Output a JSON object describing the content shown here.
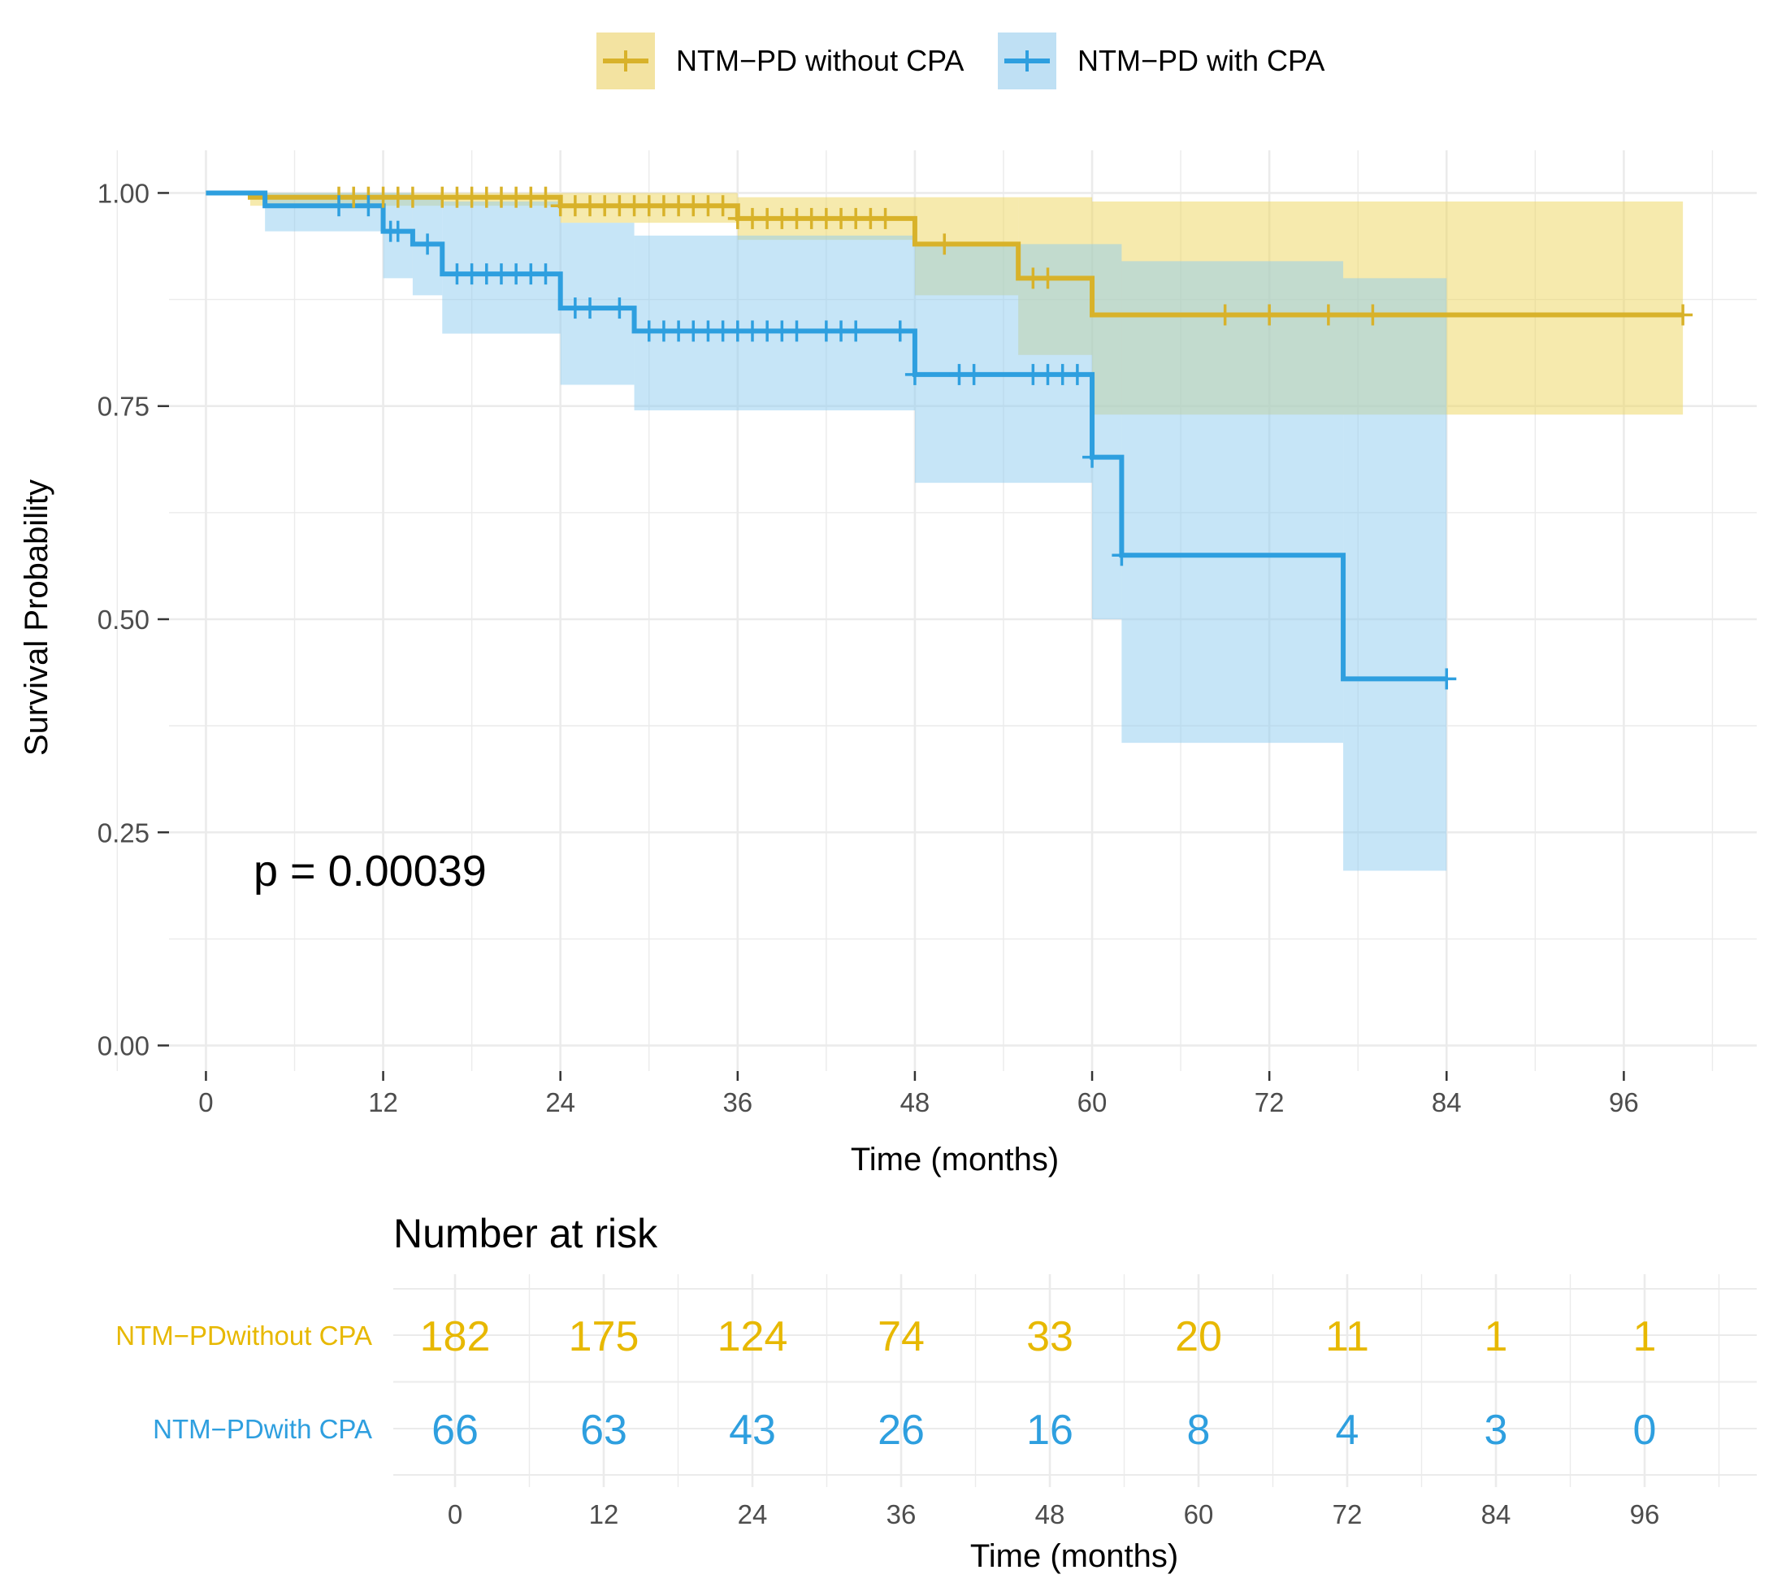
{
  "chart_data": {
    "type": "kaplan-meier",
    "xlabel": "Time (months)",
    "ylabel": "Survival Probability",
    "x_ticks": [
      0,
      12,
      24,
      36,
      48,
      60,
      72,
      84,
      96
    ],
    "x_tick_labels": [
      "0",
      "12",
      "24",
      "36",
      "48",
      "60",
      "72",
      "84",
      "96"
    ],
    "y_ticks": [
      0,
      0.25,
      0.5,
      0.75,
      1.0
    ],
    "y_tick_labels": [
      "0.00",
      "0.25",
      "0.50",
      "0.75",
      "1.00"
    ],
    "xlim": [
      -2.5,
      105
    ],
    "ylim": [
      -0.03,
      1.05
    ],
    "grid": true,
    "legend_position": "top",
    "annotation": "p = 0.00039",
    "series": [
      {
        "name": "NTM−PD without CPA",
        "color": "#E7B800",
        "line_color": "#D8B22A",
        "band_color": "#EDD65C",
        "steps": [
          [
            0,
            1.0
          ],
          [
            3,
            0.995
          ],
          [
            24,
            0.985
          ],
          [
            36,
            0.97
          ],
          [
            48,
            0.94
          ],
          [
            55,
            0.9
          ],
          [
            60,
            0.857
          ],
          [
            100,
            0.857
          ]
        ],
        "ci": [
          [
            0,
            1.0,
            1.0
          ],
          [
            3,
            0.985,
            1.0
          ],
          [
            24,
            0.965,
            1.0
          ],
          [
            36,
            0.945,
            0.995
          ],
          [
            48,
            0.88,
            0.995
          ],
          [
            55,
            0.81,
            0.995
          ],
          [
            60,
            0.74,
            0.99
          ],
          [
            100,
            0.74,
            0.99
          ]
        ],
        "censor_times": [
          9,
          10,
          11,
          12,
          13,
          14,
          16,
          17,
          18,
          19,
          20,
          21,
          22,
          23,
          24,
          25,
          26,
          27,
          28,
          29,
          30,
          31,
          32,
          33,
          34,
          35,
          36,
          37,
          38,
          39,
          40,
          41,
          42,
          43,
          44,
          45,
          46,
          50,
          56,
          57,
          69,
          72,
          76,
          79,
          100
        ]
      },
      {
        "name": "NTM−PD with CPA",
        "color": "#2E9FDF",
        "line_color": "#2E9FDF",
        "band_color": "#8ECBEF",
        "steps": [
          [
            0,
            1.0
          ],
          [
            4,
            0.985
          ],
          [
            12,
            0.955
          ],
          [
            14,
            0.94
          ],
          [
            16,
            0.905
          ],
          [
            24,
            0.865
          ],
          [
            29,
            0.838
          ],
          [
            48,
            0.787
          ],
          [
            60,
            0.69
          ],
          [
            62,
            0.575
          ],
          [
            77,
            0.43
          ],
          [
            84,
            0.43
          ]
        ],
        "ci": [
          [
            0,
            1.0,
            1.0
          ],
          [
            4,
            0.955,
            1.0
          ],
          [
            12,
            0.9,
            1.0
          ],
          [
            14,
            0.88,
            0.995
          ],
          [
            16,
            0.835,
            0.99
          ],
          [
            24,
            0.775,
            0.965
          ],
          [
            29,
            0.745,
            0.95
          ],
          [
            48,
            0.66,
            0.94
          ],
          [
            60,
            0.5,
            0.94
          ],
          [
            62,
            0.355,
            0.92
          ],
          [
            77,
            0.205,
            0.9
          ],
          [
            84,
            0.205,
            0.9
          ]
        ],
        "censor_times": [
          9,
          11,
          12.5,
          13,
          15,
          17,
          18,
          19,
          20,
          21,
          22,
          23,
          25,
          26,
          28,
          30,
          31,
          32,
          33,
          34,
          35,
          36,
          37,
          38,
          39,
          40,
          42,
          43,
          44,
          47,
          48,
          51,
          52,
          56,
          57,
          58,
          59,
          60,
          62,
          84
        ]
      }
    ],
    "risk_table": {
      "title": "Number at risk",
      "times": [
        0,
        12,
        24,
        36,
        48,
        60,
        72,
        84,
        96
      ],
      "time_labels": [
        "0",
        "12",
        "24",
        "36",
        "48",
        "60",
        "72",
        "84",
        "96"
      ],
      "xlabel": "Time (months)",
      "rows": [
        {
          "label": "NTM−PDwithout CPA",
          "values": [
            "182",
            "175",
            "124",
            "74",
            "33",
            "20",
            "11",
            "1",
            "1"
          ],
          "color": "#E7B800"
        },
        {
          "label": "NTM−PDwith CPA",
          "values": [
            "66",
            "63",
            "43",
            "26",
            "16",
            "8",
            "4",
            "3",
            "0"
          ],
          "color": "#2E9FDF"
        }
      ]
    }
  }
}
